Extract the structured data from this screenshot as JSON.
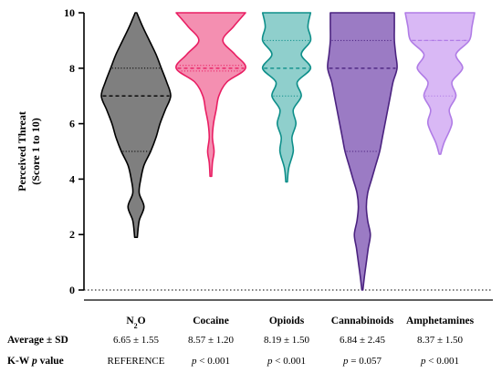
{
  "chart_data": {
    "type": "violin",
    "ylabel_line1": "Perceived Threat",
    "ylabel_line2": "(Score 1 to 10)",
    "ylim": [
      0,
      10
    ],
    "yticks": [
      "0",
      "2",
      "4",
      "6",
      "8",
      "10"
    ],
    "grid": false,
    "reference_line_y": 0,
    "row_labels": {
      "average": "Average ± SD",
      "kw_prefix": "K-W ",
      "kw_italic": "p",
      "kw_suffix": " value"
    },
    "series": [
      {
        "name": "N2O",
        "label_main": "N",
        "label_sub": "2",
        "label_end": "O",
        "color_fill": "#7f7f7f",
        "color_line": "#000000",
        "median": 7,
        "q1": 5,
        "q3": 8,
        "min": 1.9,
        "max": 10,
        "average_sd": "6.65 ± 1.55",
        "kw_p": "REFERENCE",
        "kw_italic": false,
        "profile": [
          [
            1.9,
            0.005
          ],
          [
            2.5,
            0.012
          ],
          [
            3,
            0.03
          ],
          [
            3.5,
            0.012
          ],
          [
            4,
            0.018
          ],
          [
            4.5,
            0.03
          ],
          [
            5,
            0.055
          ],
          [
            5.5,
            0.075
          ],
          [
            6,
            0.09
          ],
          [
            6.5,
            0.11
          ],
          [
            7,
            0.13
          ],
          [
            7.5,
            0.115
          ],
          [
            8,
            0.095
          ],
          [
            8.5,
            0.075
          ],
          [
            9,
            0.05
          ],
          [
            9.5,
            0.025
          ],
          [
            10,
            0.003
          ]
        ]
      },
      {
        "name": "Cocaine",
        "label_main": "Cocaine",
        "color_fill": "#f48fb1",
        "color_line": "#e91e63",
        "median": 8,
        "q1": 7.9,
        "q3": 8.1,
        "min": 4.1,
        "max": 10,
        "average_sd": "8.57 ± 1.20",
        "kw_p": "< 0.001",
        "kw_italic": true,
        "profile": [
          [
            4.1,
            0.003
          ],
          [
            4.6,
            0.006
          ],
          [
            5,
            0.012
          ],
          [
            5.5,
            0.006
          ],
          [
            6,
            0.01
          ],
          [
            6.5,
            0.02
          ],
          [
            7,
            0.03
          ],
          [
            7.5,
            0.06
          ],
          [
            8,
            0.13
          ],
          [
            8.5,
            0.09
          ],
          [
            9,
            0.045
          ],
          [
            9.5,
            0.085
          ],
          [
            10,
            0.13
          ]
        ]
      },
      {
        "name": "Opioids",
        "label_main": "Opioids",
        "color_fill": "#8fcfcc",
        "color_line": "#0e8f8a",
        "median": 8,
        "q1": 7,
        "q3": 9,
        "min": 3.9,
        "max": 10,
        "average_sd": "8.19 ± 1.50",
        "kw_p": "< 0.001",
        "kw_italic": true,
        "profile": [
          [
            3.9,
            0.003
          ],
          [
            4.4,
            0.008
          ],
          [
            5,
            0.025
          ],
          [
            5.5,
            0.02
          ],
          [
            6,
            0.035
          ],
          [
            6.5,
            0.025
          ],
          [
            7,
            0.055
          ],
          [
            7.5,
            0.04
          ],
          [
            8,
            0.09
          ],
          [
            8.5,
            0.055
          ],
          [
            9,
            0.09
          ],
          [
            9.5,
            0.08
          ],
          [
            10,
            0.09
          ]
        ]
      },
      {
        "name": "Cannabinoids",
        "label_main": "Cannabinoids",
        "color_fill": "#9b7bc4",
        "color_line": "#4b2380",
        "median": 8,
        "q1": 5,
        "q3": 9,
        "min": 0,
        "max": 10,
        "average_sd": "6.84 ± 2.45",
        "kw_p": "= 0.057",
        "kw_italic": true,
        "profile": [
          [
            0,
            0.002
          ],
          [
            0.5,
            0.008
          ],
          [
            1,
            0.015
          ],
          [
            1.5,
            0.022
          ],
          [
            2,
            0.03
          ],
          [
            2.5,
            0.02
          ],
          [
            3,
            0.015
          ],
          [
            3.5,
            0.02
          ],
          [
            4,
            0.035
          ],
          [
            4.5,
            0.05
          ],
          [
            5,
            0.065
          ],
          [
            5.5,
            0.075
          ],
          [
            6,
            0.085
          ],
          [
            6.5,
            0.095
          ],
          [
            7,
            0.105
          ],
          [
            7.5,
            0.115
          ],
          [
            8,
            0.13
          ],
          [
            8.5,
            0.125
          ],
          [
            9,
            0.12
          ],
          [
            9.5,
            0.12
          ],
          [
            10,
            0.12
          ]
        ]
      },
      {
        "name": "Amphetamines",
        "label_main": "Amphetamines",
        "color_fill": "#d9b8f5",
        "color_line": "#b07ce6",
        "median": 9,
        "q1": 7,
        "q3": 9,
        "min": 4.9,
        "max": 10,
        "average_sd": "8.37 ± 1.50",
        "kw_p": "< 0.001",
        "kw_italic": true,
        "profile": [
          [
            4.9,
            0.003
          ],
          [
            5.3,
            0.015
          ],
          [
            6,
            0.045
          ],
          [
            6.5,
            0.035
          ],
          [
            7,
            0.06
          ],
          [
            7.5,
            0.045
          ],
          [
            8,
            0.085
          ],
          [
            8.5,
            0.06
          ],
          [
            9,
            0.11
          ],
          [
            9.5,
            0.12
          ],
          [
            10,
            0.13
          ]
        ]
      }
    ]
  }
}
